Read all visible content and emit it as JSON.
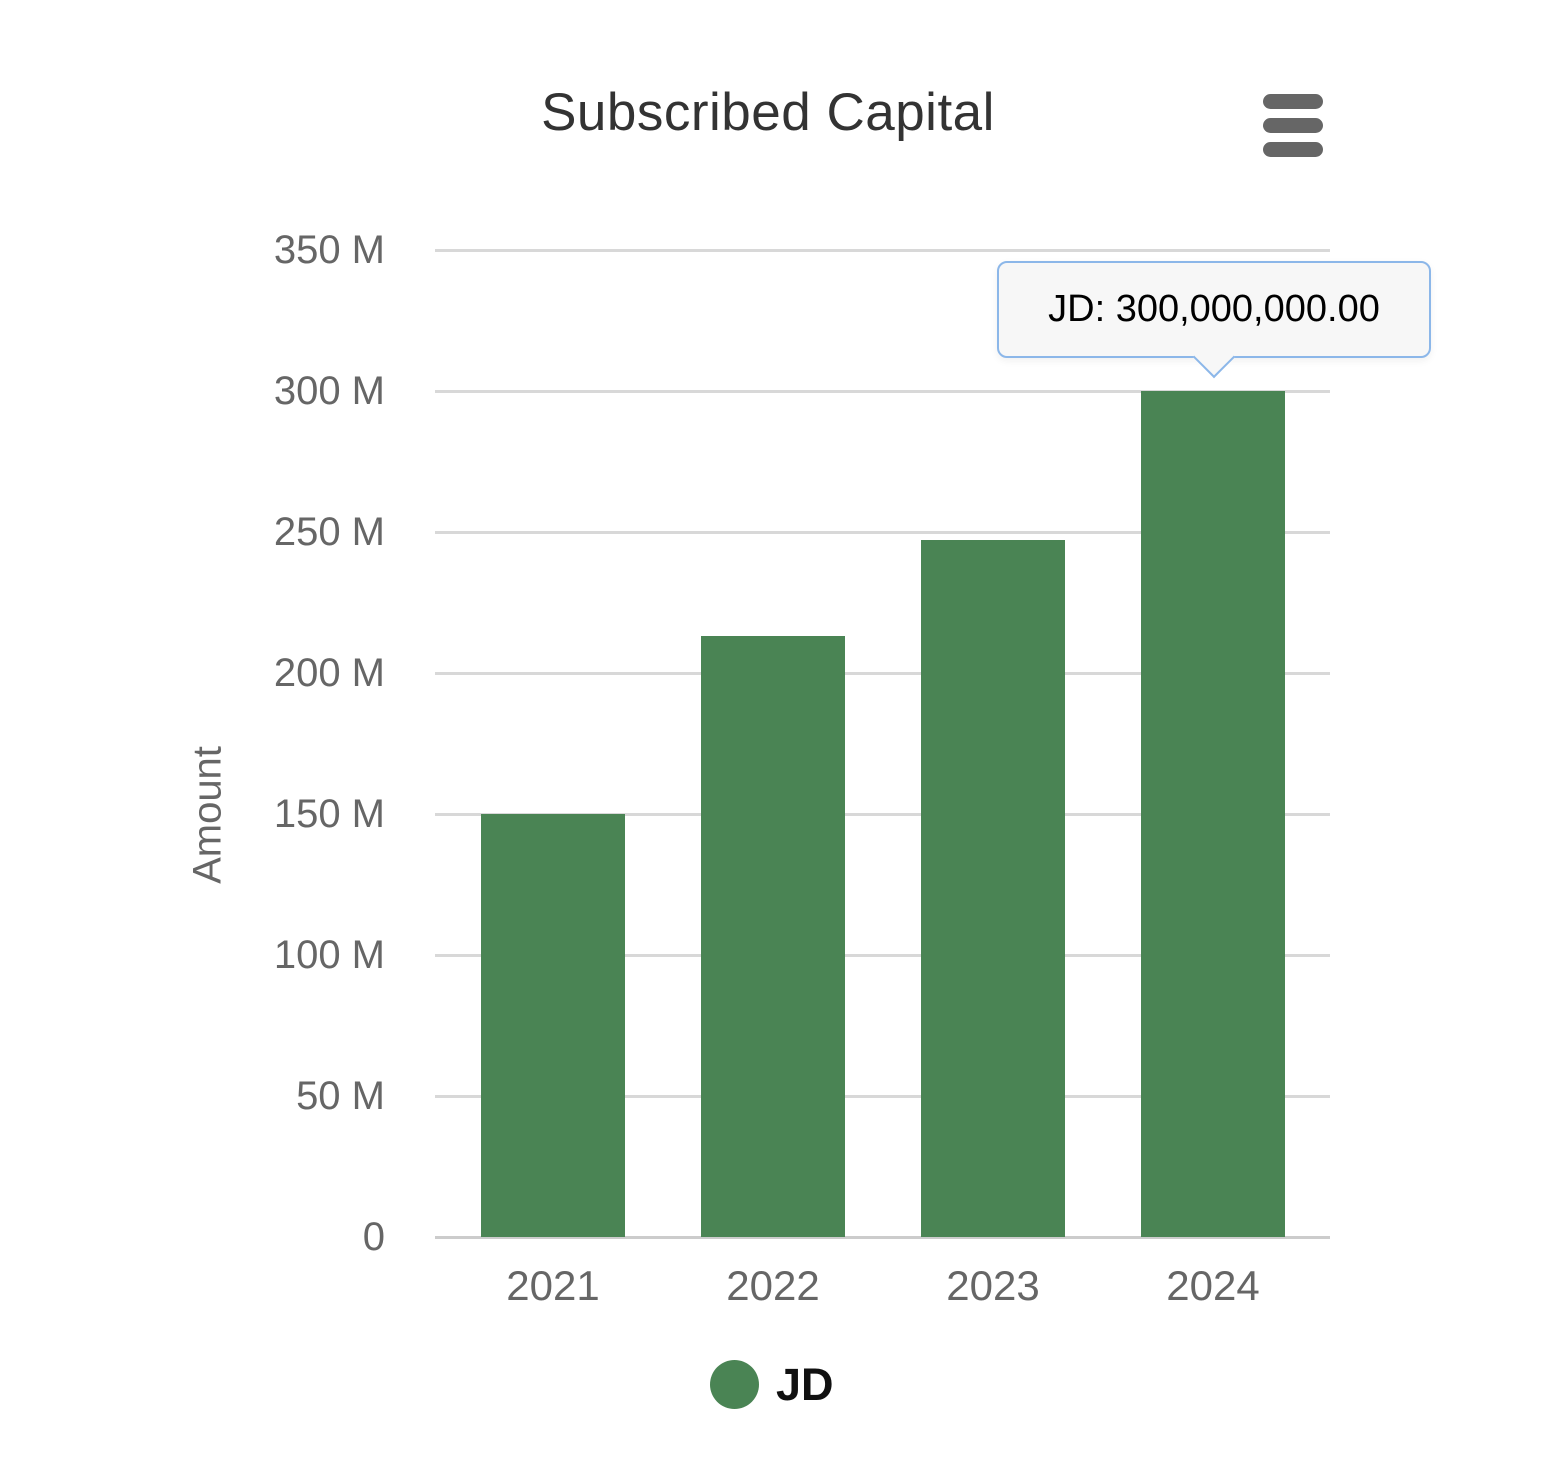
{
  "chart_data": {
    "type": "bar",
    "title": "Subscribed Capital",
    "categories": [
      "2021",
      "2022",
      "2023",
      "2024"
    ],
    "series": [
      {
        "name": "JD",
        "color": "#4a8454",
        "values": [
          150000000,
          213000000,
          247000000,
          300000000
        ]
      }
    ],
    "xlabel": "",
    "ylabel": "Amount",
    "ylim": [
      0,
      350000000
    ],
    "yticks": [
      {
        "value": 0,
        "label": "0"
      },
      {
        "value": 50000000,
        "label": "50 M"
      },
      {
        "value": 100000000,
        "label": "100 M"
      },
      {
        "value": 150000000,
        "label": "150 M"
      },
      {
        "value": 200000000,
        "label": "200 M"
      },
      {
        "value": 250000000,
        "label": "250 M"
      },
      {
        "value": 300000000,
        "label": "300 M"
      },
      {
        "value": 350000000,
        "label": "350 M"
      }
    ],
    "grid": true,
    "legend_position": "bottom"
  },
  "tooltip": {
    "series": "JD",
    "value": "300,000,000.00",
    "text": "JD: 300,000,000.00",
    "target_category": "2024"
  },
  "legend": {
    "items": [
      {
        "label": "JD",
        "color": "#4a8454"
      }
    ]
  },
  "export_menu": {
    "icon": "hamburger-menu-icon"
  },
  "colors": {
    "bar": "#4a8454",
    "title_text": "#333333",
    "axis_text": "#666666",
    "gridline": "#d8d8d8",
    "axis_line": "#cccccc",
    "tooltip_border": "#8cb7e9",
    "tooltip_background": "#f7f7f7",
    "menu_icon": "#666666"
  }
}
